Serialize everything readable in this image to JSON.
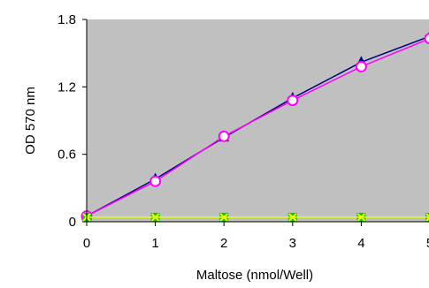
{
  "chart_data": {
    "type": "line",
    "title": "",
    "xlabel": "Maltose (nmol/Well)",
    "ylabel": "OD 570 nm",
    "xlim": [
      0,
      5
    ],
    "ylim": [
      0,
      1.8
    ],
    "x_ticks": [
      "0",
      "1",
      "2",
      "3",
      "4",
      "5"
    ],
    "y_ticks": [
      "0",
      "0.6",
      "1.2",
      "1.8"
    ],
    "x_tick_values": [
      0,
      1,
      2,
      3,
      4,
      5
    ],
    "y_tick_values": [
      0,
      0.6,
      1.2,
      1.8
    ],
    "grid": false,
    "legend": "none",
    "plot_background": "#c0c0c0",
    "series": [
      {
        "color": "#000080",
        "marker": "triangle",
        "x": [
          0,
          1,
          2,
          3,
          4,
          5
        ],
        "y": [
          0.05,
          0.38,
          0.75,
          1.1,
          1.42,
          1.65
        ]
      },
      {
        "color": "#ff00ff",
        "marker": "circle",
        "x": [
          0,
          1,
          2,
          3,
          4,
          5
        ],
        "y": [
          0.05,
          0.36,
          0.76,
          1.08,
          1.38,
          1.63
        ]
      },
      {
        "color": "#00cc00",
        "marker": "square",
        "x": [
          0,
          1,
          2,
          3,
          4,
          5
        ],
        "y": [
          0.04,
          0.04,
          0.04,
          0.04,
          0.04,
          0.04
        ]
      },
      {
        "color": "#ffff00",
        "marker": "x",
        "x": [
          0,
          1,
          2,
          3,
          4,
          5
        ],
        "y": [
          0.04,
          0.04,
          0.04,
          0.04,
          0.04,
          0.04
        ]
      }
    ]
  }
}
